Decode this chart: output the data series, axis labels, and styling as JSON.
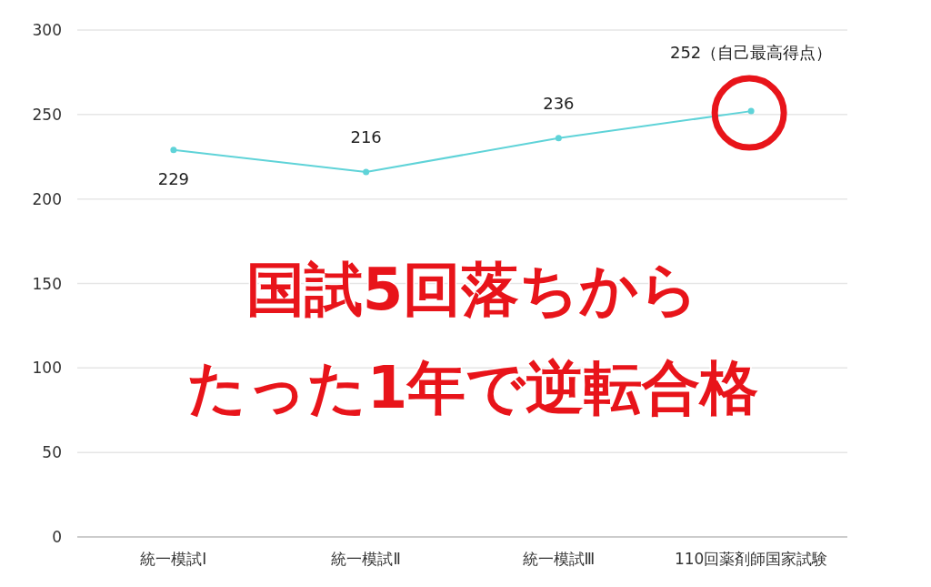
{
  "chart_data": {
    "type": "line",
    "categories": [
      "統一模試Ⅰ",
      "統一模試Ⅱ",
      "統一模試Ⅲ",
      "110回薬剤師国家試験"
    ],
    "series": [
      {
        "color": "#5fd3d8",
        "values": [
          229,
          216,
          236,
          252
        ],
        "value_labels": [
          "229",
          "216",
          "236",
          "252（自己最高得点）"
        ]
      }
    ],
    "ylim": [
      0,
      300
    ],
    "yticks": [
      0,
      50,
      100,
      150,
      200,
      250,
      300
    ],
    "grid": "y",
    "marker": "circle",
    "annotations": [
      "国試5回落ちから",
      "たった1年で逆転合格"
    ]
  }
}
